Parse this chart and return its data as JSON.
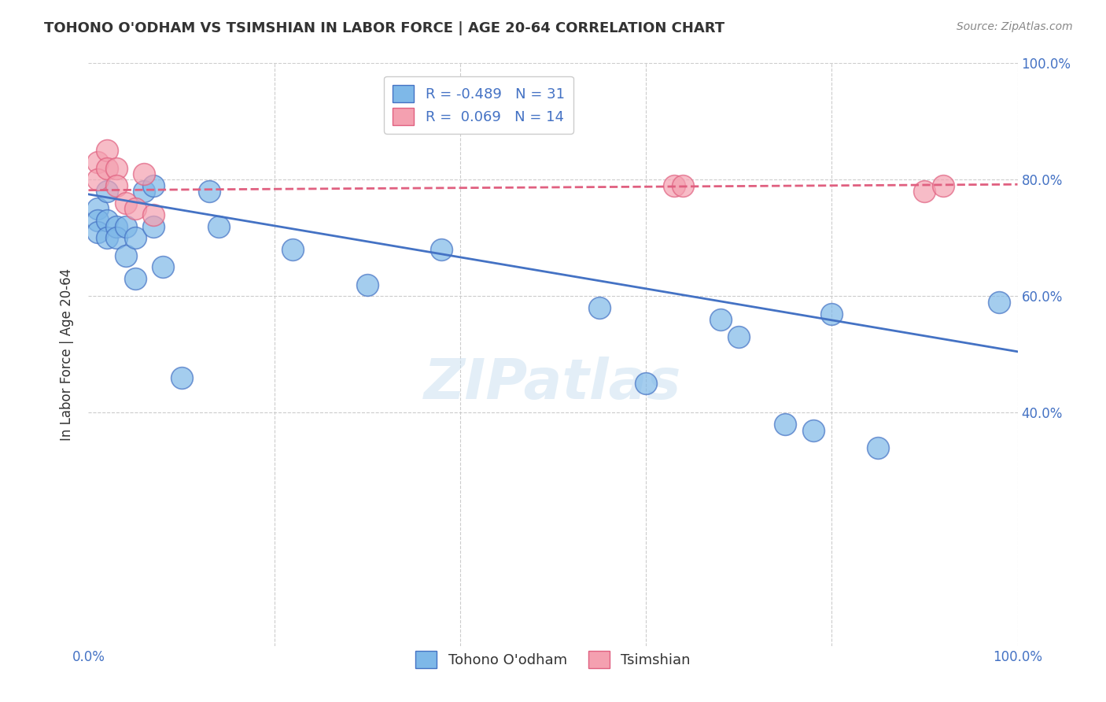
{
  "title": "TOHONO O'ODHAM VS TSIMSHIAN IN LABOR FORCE | AGE 20-64 CORRELATION CHART",
  "source": "Source: ZipAtlas.com",
  "ylabel": "In Labor Force | Age 20-64",
  "xlim": [
    0.0,
    1.0
  ],
  "ylim": [
    0.0,
    1.0
  ],
  "blue_R": "-0.489",
  "blue_N": "31",
  "pink_R": "0.069",
  "pink_N": "14",
  "blue_color": "#7eb8e8",
  "pink_color": "#f4a0b0",
  "blue_line_color": "#4472C4",
  "pink_line_color": "#E06080",
  "watermark": "ZIPatlas",
  "legend_label_blue": "Tohono O'odham",
  "legend_label_pink": "Tsimshian",
  "blue_points_x": [
    0.01,
    0.01,
    0.01,
    0.02,
    0.02,
    0.02,
    0.03,
    0.03,
    0.04,
    0.04,
    0.05,
    0.05,
    0.06,
    0.07,
    0.07,
    0.08,
    0.1,
    0.13,
    0.14,
    0.22,
    0.3,
    0.38,
    0.55,
    0.6,
    0.68,
    0.7,
    0.75,
    0.78,
    0.8,
    0.85,
    0.98
  ],
  "blue_points_y": [
    0.75,
    0.73,
    0.71,
    0.78,
    0.73,
    0.7,
    0.72,
    0.7,
    0.72,
    0.67,
    0.63,
    0.7,
    0.78,
    0.79,
    0.72,
    0.65,
    0.46,
    0.78,
    0.72,
    0.68,
    0.62,
    0.68,
    0.58,
    0.45,
    0.56,
    0.53,
    0.38,
    0.37,
    0.57,
    0.34,
    0.59
  ],
  "pink_points_x": [
    0.01,
    0.01,
    0.02,
    0.02,
    0.03,
    0.03,
    0.04,
    0.05,
    0.06,
    0.07,
    0.63,
    0.64,
    0.9,
    0.92
  ],
  "pink_points_y": [
    0.83,
    0.8,
    0.85,
    0.82,
    0.82,
    0.79,
    0.76,
    0.75,
    0.81,
    0.74,
    0.79,
    0.79,
    0.78,
    0.79
  ],
  "blue_trend_x": [
    0.0,
    1.0
  ],
  "blue_trend_y": [
    0.775,
    0.505
  ],
  "pink_trend_x": [
    0.0,
    1.0
  ],
  "pink_trend_y": [
    0.782,
    0.792
  ],
  "grid_color": "#cccccc",
  "background_color": "#ffffff"
}
